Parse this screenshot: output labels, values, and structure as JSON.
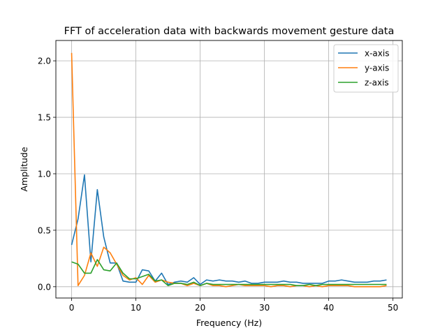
{
  "chart_data": {
    "type": "line",
    "title": "FFT of acceleration data with backwards movement gesture data",
    "xlabel": "Frequency (Hz)",
    "ylabel": "Amplitude",
    "xlim": [
      -2.45,
      51.45
    ],
    "ylim": [
      -0.1,
      2.18
    ],
    "xticks": [
      0,
      10,
      20,
      30,
      40,
      50
    ],
    "yticks": [
      0.0,
      0.5,
      1.0,
      1.5,
      2.0
    ],
    "xtick_labels": [
      "0",
      "10",
      "20",
      "30",
      "40",
      "50"
    ],
    "ytick_labels": [
      "0.0",
      "0.5",
      "1.0",
      "1.5",
      "2.0"
    ],
    "grid": true,
    "legend_position": "top-right",
    "x": [
      0,
      1,
      2,
      3,
      4,
      5,
      6,
      7,
      8,
      9,
      10,
      11,
      12,
      13,
      14,
      15,
      16,
      17,
      18,
      19,
      20,
      21,
      22,
      23,
      24,
      25,
      26,
      27,
      28,
      29,
      30,
      31,
      32,
      33,
      34,
      35,
      36,
      37,
      38,
      39,
      40,
      41,
      42,
      43,
      44,
      45,
      46,
      47,
      48,
      49
    ],
    "series": [
      {
        "name": "x-axis",
        "color": "#1f77b4",
        "values": [
          0.37,
          0.6,
          0.99,
          0.22,
          0.86,
          0.44,
          0.21,
          0.21,
          0.05,
          0.04,
          0.04,
          0.15,
          0.14,
          0.05,
          0.12,
          0.02,
          0.04,
          0.05,
          0.04,
          0.08,
          0.02,
          0.06,
          0.05,
          0.06,
          0.05,
          0.05,
          0.04,
          0.05,
          0.03,
          0.03,
          0.04,
          0.04,
          0.04,
          0.05,
          0.04,
          0.04,
          0.03,
          0.03,
          0.03,
          0.03,
          0.05,
          0.05,
          0.06,
          0.05,
          0.04,
          0.04,
          0.04,
          0.05,
          0.05,
          0.06
        ]
      },
      {
        "name": "y-axis",
        "color": "#ff7f0e",
        "values": [
          2.07,
          0.01,
          0.1,
          0.3,
          0.18,
          0.35,
          0.3,
          0.2,
          0.1,
          0.06,
          0.08,
          0.02,
          0.1,
          0.04,
          0.06,
          0.04,
          0.03,
          0.03,
          0.01,
          0.03,
          0.01,
          0.03,
          0.01,
          0.01,
          0.0,
          0.01,
          0.02,
          0.01,
          0.01,
          0.01,
          0.01,
          0.0,
          0.01,
          0.01,
          0.0,
          0.01,
          0.01,
          0.0,
          0.01,
          0.0,
          0.01,
          0.01,
          0.01,
          0.01,
          0.0,
          0.0,
          0.0,
          0.0,
          0.0,
          0.01
        ]
      },
      {
        "name": "z-axis",
        "color": "#2ca02c",
        "values": [
          0.22,
          0.2,
          0.12,
          0.12,
          0.24,
          0.15,
          0.14,
          0.21,
          0.12,
          0.07,
          0.07,
          0.09,
          0.11,
          0.05,
          0.06,
          0.01,
          0.03,
          0.03,
          0.02,
          0.04,
          0.01,
          0.03,
          0.02,
          0.02,
          0.02,
          0.02,
          0.02,
          0.02,
          0.02,
          0.02,
          0.02,
          0.02,
          0.02,
          0.02,
          0.02,
          0.01,
          0.01,
          0.02,
          0.01,
          0.02,
          0.02,
          0.02,
          0.02,
          0.02,
          0.02,
          0.02,
          0.02,
          0.02,
          0.02,
          0.02
        ]
      }
    ]
  }
}
